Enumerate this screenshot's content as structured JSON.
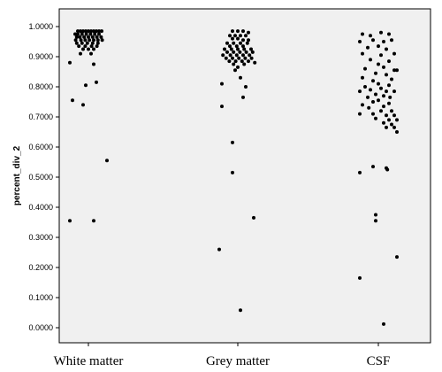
{
  "chart_data": {
    "type": "scatter",
    "title": "",
    "xlabel": "",
    "ylabel": "percent_div_2",
    "ylim": [
      0,
      1
    ],
    "yticks": [
      "0.0000",
      "0.1000",
      "0.2000",
      "0.3000",
      "0.4000",
      "0.5000",
      "0.6000",
      "0.7000",
      "0.8000",
      "0.9000",
      "1.0000"
    ],
    "categories": [
      "White matter",
      "Grey matter",
      "CSF"
    ],
    "grid": false,
    "legend": "none",
    "colors": {
      "plot_bg": "#f0f0f0",
      "marker": "#000000",
      "frame": "#000000"
    },
    "series": [
      {
        "category": "White matter",
        "points": [
          [
            -0.2,
            0.985
          ],
          [
            -0.15,
            0.985
          ],
          [
            -0.1,
            0.985
          ],
          [
            -0.05,
            0.985
          ],
          [
            0.0,
            0.985
          ],
          [
            0.05,
            0.985
          ],
          [
            0.1,
            0.985
          ],
          [
            0.15,
            0.985
          ],
          [
            0.2,
            0.985
          ],
          [
            0.25,
            0.985
          ],
          [
            -0.25,
            0.975
          ],
          [
            -0.2,
            0.975
          ],
          [
            -0.12,
            0.975
          ],
          [
            -0.04,
            0.975
          ],
          [
            0.04,
            0.975
          ],
          [
            0.12,
            0.975
          ],
          [
            0.2,
            0.975
          ],
          [
            -0.22,
            0.965
          ],
          [
            -0.16,
            0.965
          ],
          [
            -0.08,
            0.965
          ],
          [
            0.0,
            0.965
          ],
          [
            0.08,
            0.965
          ],
          [
            0.16,
            0.965
          ],
          [
            0.24,
            0.965
          ],
          [
            -0.24,
            0.955
          ],
          [
            -0.14,
            0.955
          ],
          [
            -0.06,
            0.955
          ],
          [
            0.02,
            0.955
          ],
          [
            0.1,
            0.955
          ],
          [
            0.18,
            0.955
          ],
          [
            0.26,
            0.955
          ],
          [
            -0.22,
            0.945
          ],
          [
            -0.12,
            0.945
          ],
          [
            -0.02,
            0.945
          ],
          [
            0.08,
            0.945
          ],
          [
            0.18,
            0.945
          ],
          [
            -0.18,
            0.935
          ],
          [
            -0.06,
            0.935
          ],
          [
            0.06,
            0.935
          ],
          [
            0.16,
            0.935
          ],
          [
            -0.1,
            0.925
          ],
          [
            0.0,
            0.925
          ],
          [
            0.1,
            0.925
          ],
          [
            -0.15,
            0.91
          ],
          [
            0.05,
            0.91
          ],
          [
            -0.35,
            0.88
          ],
          [
            0.1,
            0.875
          ],
          [
            0.15,
            0.815
          ],
          [
            -0.05,
            0.805
          ],
          [
            -0.3,
            0.755
          ],
          [
            -0.1,
            0.74
          ],
          [
            0.35,
            0.555
          ],
          [
            -0.35,
            0.355
          ],
          [
            0.1,
            0.355
          ]
        ]
      },
      {
        "category": "Grey matter",
        "points": [
          [
            -0.1,
            0.985
          ],
          [
            0.0,
            0.985
          ],
          [
            0.1,
            0.985
          ],
          [
            0.2,
            0.98
          ],
          [
            -0.15,
            0.97
          ],
          [
            -0.05,
            0.97
          ],
          [
            0.05,
            0.97
          ],
          [
            0.15,
            0.97
          ],
          [
            -0.1,
            0.96
          ],
          [
            0.0,
            0.96
          ],
          [
            0.1,
            0.955
          ],
          [
            0.2,
            0.955
          ],
          [
            -0.2,
            0.945
          ],
          [
            -0.08,
            0.945
          ],
          [
            0.05,
            0.945
          ],
          [
            0.18,
            0.945
          ],
          [
            -0.15,
            0.935
          ],
          [
            -0.02,
            0.935
          ],
          [
            0.1,
            0.935
          ],
          [
            -0.25,
            0.925
          ],
          [
            -0.12,
            0.925
          ],
          [
            0.0,
            0.925
          ],
          [
            0.12,
            0.925
          ],
          [
            0.25,
            0.925
          ],
          [
            -0.2,
            0.915
          ],
          [
            -0.08,
            0.915
          ],
          [
            0.04,
            0.915
          ],
          [
            0.16,
            0.915
          ],
          [
            0.28,
            0.915
          ],
          [
            -0.28,
            0.905
          ],
          [
            -0.14,
            0.905
          ],
          [
            -0.02,
            0.905
          ],
          [
            0.1,
            0.905
          ],
          [
            0.22,
            0.905
          ],
          [
            -0.22,
            0.895
          ],
          [
            -0.1,
            0.895
          ],
          [
            0.02,
            0.895
          ],
          [
            0.14,
            0.895
          ],
          [
            0.26,
            0.895
          ],
          [
            -0.16,
            0.885
          ],
          [
            -0.04,
            0.885
          ],
          [
            0.08,
            0.885
          ],
          [
            0.2,
            0.885
          ],
          [
            0.32,
            0.88
          ],
          [
            -0.08,
            0.875
          ],
          [
            0.12,
            0.875
          ],
          [
            0.0,
            0.865
          ],
          [
            -0.05,
            0.855
          ],
          [
            0.05,
            0.83
          ],
          [
            -0.3,
            0.81
          ],
          [
            0.15,
            0.8
          ],
          [
            0.1,
            0.765
          ],
          [
            -0.3,
            0.735
          ],
          [
            -0.1,
            0.615
          ],
          [
            -0.1,
            0.515
          ],
          [
            0.3,
            0.365
          ],
          [
            -0.35,
            0.26
          ],
          [
            0.05,
            0.058
          ]
        ]
      },
      {
        "category": "CSF",
        "points": [
          [
            -0.3,
            0.975
          ],
          [
            0.05,
            0.98
          ],
          [
            0.2,
            0.975
          ],
          [
            -0.15,
            0.97
          ],
          [
            -0.1,
            0.955
          ],
          [
            -0.35,
            0.95
          ],
          [
            0.1,
            0.95
          ],
          [
            0.25,
            0.955
          ],
          [
            0.0,
            0.935
          ],
          [
            -0.2,
            0.93
          ],
          [
            0.15,
            0.925
          ],
          [
            -0.3,
            0.91
          ],
          [
            0.3,
            0.91
          ],
          [
            0.05,
            0.905
          ],
          [
            -0.15,
            0.89
          ],
          [
            0.2,
            0.885
          ],
          [
            0.0,
            0.875
          ],
          [
            0.1,
            0.865
          ],
          [
            -0.25,
            0.86
          ],
          [
            0.3,
            0.855
          ],
          [
            0.35,
            0.855
          ],
          [
            -0.05,
            0.845
          ],
          [
            0.15,
            0.84
          ],
          [
            -0.3,
            0.83
          ],
          [
            -0.1,
            0.82
          ],
          [
            0.25,
            0.825
          ],
          [
            0.0,
            0.81
          ],
          [
            0.2,
            0.805
          ],
          [
            -0.25,
            0.8
          ],
          [
            0.05,
            0.795
          ],
          [
            -0.15,
            0.79
          ],
          [
            -0.35,
            0.785
          ],
          [
            0.15,
            0.785
          ],
          [
            0.3,
            0.785
          ],
          [
            -0.05,
            0.775
          ],
          [
            0.1,
            0.77
          ],
          [
            -0.2,
            0.765
          ],
          [
            0.22,
            0.765
          ],
          [
            0.0,
            0.755
          ],
          [
            -0.1,
            0.75
          ],
          [
            0.2,
            0.745
          ],
          [
            -0.3,
            0.74
          ],
          [
            0.1,
            0.735
          ],
          [
            -0.18,
            0.73
          ],
          [
            0.05,
            0.72
          ],
          [
            0.25,
            0.72
          ],
          [
            -0.35,
            0.71
          ],
          [
            -0.1,
            0.71
          ],
          [
            0.15,
            0.705
          ],
          [
            0.3,
            0.705
          ],
          [
            -0.05,
            0.695
          ],
          [
            0.2,
            0.69
          ],
          [
            0.35,
            0.69
          ],
          [
            0.1,
            0.68
          ],
          [
            0.25,
            0.675
          ],
          [
            0.15,
            0.665
          ],
          [
            0.3,
            0.665
          ],
          [
            0.35,
            0.65
          ],
          [
            -0.1,
            0.535
          ],
          [
            0.15,
            0.53
          ],
          [
            0.17,
            0.525
          ],
          [
            -0.35,
            0.515
          ],
          [
            -0.05,
            0.375
          ],
          [
            -0.05,
            0.355
          ],
          [
            0.35,
            0.235
          ],
          [
            -0.35,
            0.165
          ],
          [
            0.1,
            0.012
          ]
        ]
      }
    ]
  }
}
